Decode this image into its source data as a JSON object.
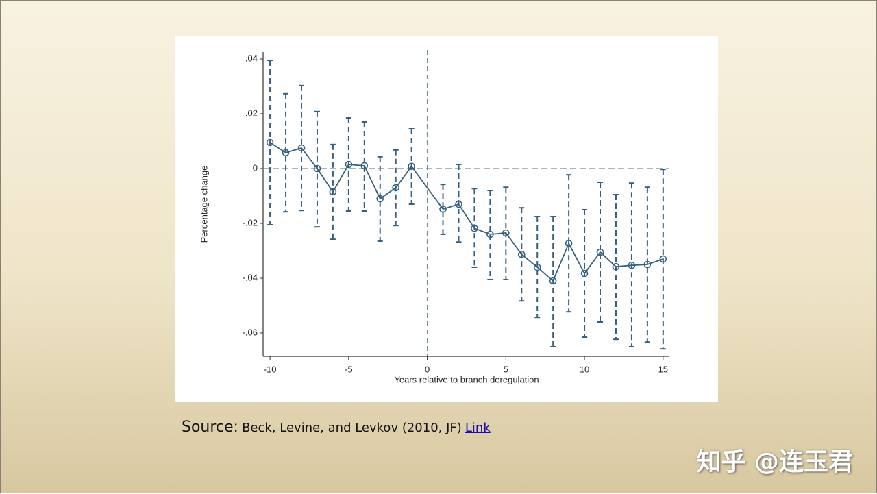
{
  "chart_data": {
    "type": "errorbar",
    "y_label": "Percentage change",
    "x_label": "Years relative to branch deregulation",
    "x": [
      -10,
      -9,
      -8,
      -7,
      -6,
      -5,
      -4,
      -3,
      -2,
      -1,
      1,
      2,
      3,
      4,
      5,
      6,
      7,
      8,
      9,
      10,
      11,
      12,
      13,
      14,
      15
    ],
    "series": [
      {
        "color": "#35607f",
        "values": [
          0.0095,
          0.0058,
          0.0075,
          0,
          -0.0085,
          0.0015,
          0.001,
          -0.011,
          -0.007,
          0.0008,
          -0.0148,
          -0.013,
          -0.0218,
          -0.024,
          -0.0235,
          -0.0313,
          -0.036,
          -0.041,
          -0.0273,
          -0.0383,
          -0.0305,
          -0.0358,
          -0.0353,
          -0.035,
          -0.033
        ],
        "lower": [
          -0.0205,
          -0.0158,
          -0.0153,
          -0.0213,
          -0.0258,
          -0.0155,
          -0.0155,
          -0.0265,
          -0.0208,
          -0.013,
          -0.024,
          -0.0268,
          -0.036,
          -0.0405,
          -0.0405,
          -0.0483,
          -0.0543,
          -0.065,
          -0.0523,
          -0.0615,
          -0.056,
          -0.0623,
          -0.065,
          -0.0633,
          -0.0658
        ],
        "upper": [
          0.0395,
          0.0273,
          0.0303,
          0.0208,
          0.0088,
          0.0185,
          0.017,
          0.0043,
          0.0068,
          0.0145,
          -0.0058,
          0.0015,
          -0.0073,
          -0.008,
          -0.0068,
          -0.0143,
          -0.0175,
          -0.0175,
          -0.0023,
          -0.015,
          -0.005,
          -0.0095,
          -0.0053,
          -0.0068,
          -0.0003
        ]
      }
    ],
    "xlim": [
      -10.44,
      15.4
    ],
    "ylim": [
      -0.0685,
      0.0425
    ],
    "xticks": [
      -10,
      -5,
      0,
      5,
      10,
      15
    ],
    "yticks": [
      {
        "value": 0.04,
        "label": ".04"
      },
      {
        "value": 0.02,
        "label": ".02"
      },
      0,
      {
        "value": -0.02,
        "label": "-.02"
      },
      {
        "value": -0.04,
        "label": "-.04"
      },
      {
        "value": -0.06,
        "label": "-.06"
      }
    ],
    "vline": 0,
    "hline": 0,
    "ref_color": "#6f8f8a"
  },
  "source": {
    "label": "Source:",
    "text": "Beck, Levine, and Levkov (2010, JF)",
    "link": "Link"
  },
  "watermark": "知乎 @连玉君"
}
